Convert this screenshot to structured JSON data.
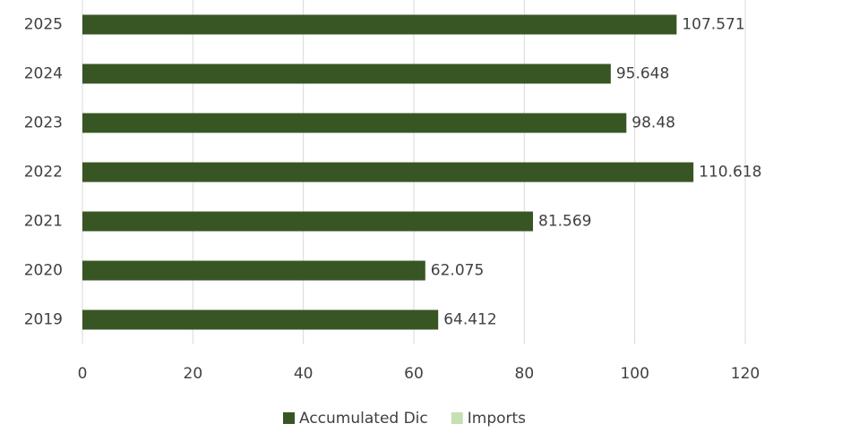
{
  "chart_data": {
    "type": "bar",
    "orientation": "horizontal",
    "categories": [
      "2019",
      "2020",
      "2021",
      "2022",
      "2023",
      "2024",
      "2025"
    ],
    "series": [
      {
        "name": "Accumulated Dic",
        "color": "#375623",
        "values": [
          64.412,
          62.075,
          81.569,
          110.618,
          98.48,
          95.648,
          107.571
        ]
      },
      {
        "name": "Imports",
        "color": "#c6e0b4",
        "values": [
          null,
          null,
          null,
          null,
          null,
          null,
          null
        ]
      }
    ],
    "xlim": [
      0,
      120
    ],
    "xticks": [
      0,
      20,
      40,
      60,
      80,
      100,
      120
    ],
    "grid": true,
    "legend": "bottom"
  }
}
